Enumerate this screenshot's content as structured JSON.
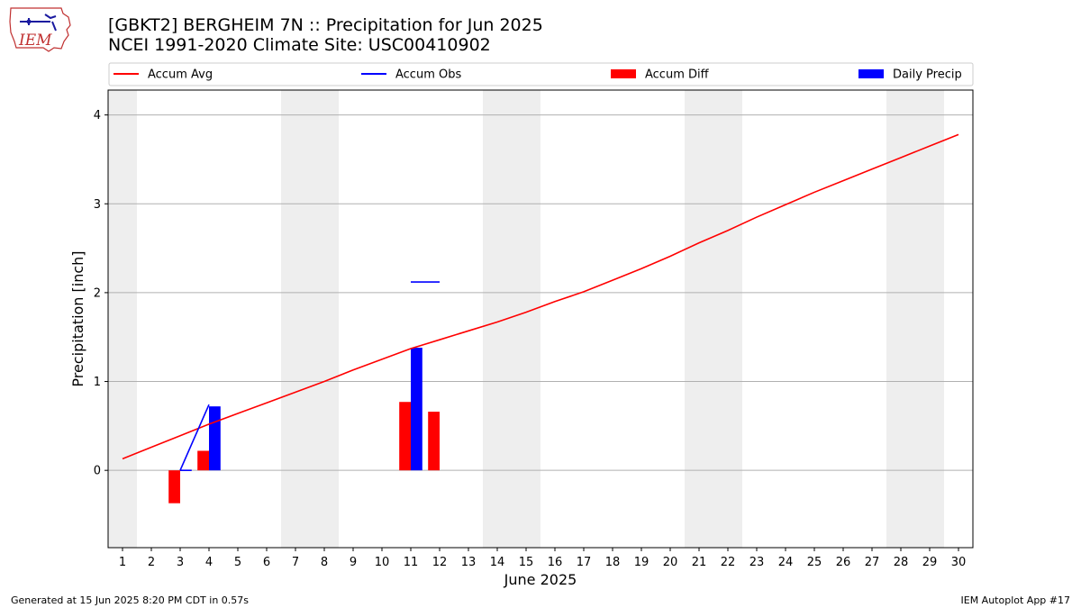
{
  "header": {
    "title_line1": "[GBKT2] BERGHEIM 7N :: Precipitation for Jun 2025",
    "title_line2": "NCEI 1991-2020 Climate Site: USC00410902",
    "logo_text": "IEM"
  },
  "footer": {
    "generated": "Generated at 15 Jun 2025 8:20 PM CDT in 0.57s",
    "app": "IEM Autoplot App #17"
  },
  "colors": {
    "accum_avg": "#ff0000",
    "accum_obs": "#0000ff",
    "accum_diff": "#ff0000",
    "daily_precip": "#0000ff",
    "weekend_shade": "#eeeeee",
    "grid": "#b0b0b0"
  },
  "chart_data": {
    "type": "bar",
    "xlabel": "June 2025",
    "ylabel": "Precipitation [inch]",
    "xlim": [
      0.5,
      30.5
    ],
    "ylim": [
      -0.87,
      4.28
    ],
    "x_ticks": [
      1,
      2,
      3,
      4,
      5,
      6,
      7,
      8,
      9,
      10,
      11,
      12,
      13,
      14,
      15,
      16,
      17,
      18,
      19,
      20,
      21,
      22,
      23,
      24,
      25,
      26,
      27,
      28,
      29,
      30
    ],
    "y_ticks": [
      0,
      1,
      2,
      3,
      4
    ],
    "grid": "y",
    "legend_position": "top",
    "legend": [
      "Accum Avg",
      "Accum Obs",
      "Accum Diff",
      "Daily Precip"
    ],
    "weekend_days": [
      1,
      7,
      8,
      14,
      15,
      21,
      22,
      28,
      29
    ],
    "series": [
      {
        "name": "Accum Avg",
        "kind": "line",
        "x": [
          1,
          2,
          3,
          4,
          5,
          6,
          7,
          8,
          9,
          10,
          11,
          12,
          13,
          14,
          15,
          16,
          17,
          18,
          19,
          20,
          21,
          22,
          23,
          24,
          25,
          26,
          27,
          28,
          29,
          30
        ],
        "values": [
          0.13,
          0.26,
          0.39,
          0.52,
          0.64,
          0.76,
          0.88,
          1.0,
          1.13,
          1.25,
          1.37,
          1.47,
          1.57,
          1.67,
          1.78,
          1.9,
          2.01,
          2.14,
          2.27,
          2.41,
          2.56,
          2.7,
          2.85,
          2.99,
          3.13,
          3.26,
          3.39,
          3.52,
          3.65,
          3.78
        ]
      },
      {
        "name": "Accum Obs",
        "kind": "line",
        "x": [
          3,
          4,
          11,
          12
        ],
        "values": [
          0,
          0.74,
          2.12,
          2.12
        ],
        "segments": [
          {
            "x": [
              3,
              3.4
            ],
            "values": [
              0,
              0
            ]
          },
          {
            "x": [
              3,
              4
            ],
            "values": [
              0,
              0.74
            ]
          },
          {
            "x": [
              11,
              12
            ],
            "values": [
              2.12,
              2.12
            ]
          }
        ]
      },
      {
        "name": "Accum Diff",
        "kind": "bar",
        "x": [
          3,
          4,
          11,
          12
        ],
        "values": [
          -0.37,
          0.22,
          0.77,
          0.66
        ]
      },
      {
        "name": "Daily Precip",
        "kind": "bar",
        "x": [
          4,
          11
        ],
        "values": [
          0.72,
          1.38
        ]
      }
    ]
  }
}
